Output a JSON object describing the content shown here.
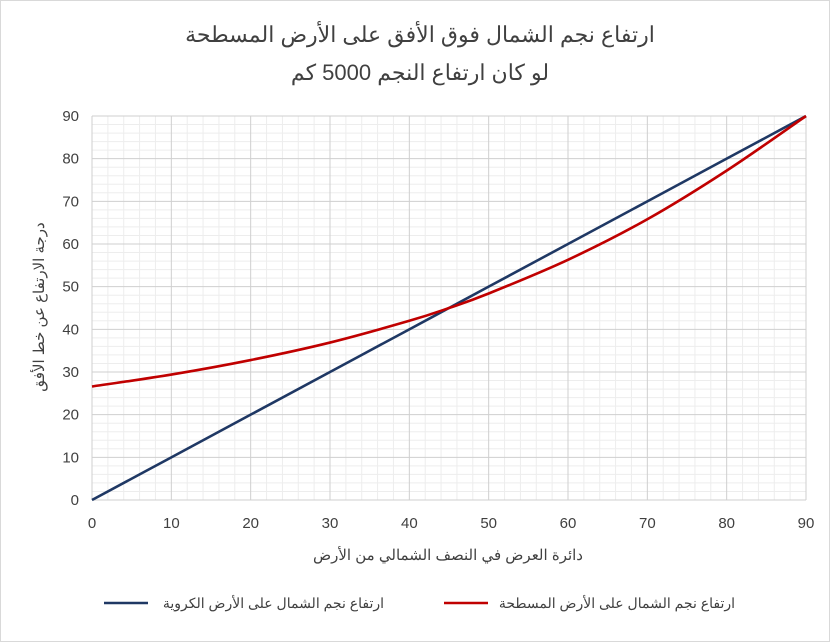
{
  "chart_data": {
    "type": "line",
    "title_line1": "ارتفاع نجم الشمال فوق الأفق على الأرض المسطحة",
    "title_line2": "لو كان ارتفاع النجم 5000 كم",
    "xlabel": "دائرة العرض في النصف الشمالي من الأرض",
    "ylabel": "درجة الارتفاع عن خط الأفق",
    "xlim": [
      0,
      90
    ],
    "ylim": [
      0,
      90
    ],
    "x_ticks": [
      "0",
      "10",
      "20",
      "30",
      "40",
      "50",
      "60",
      "70",
      "80",
      "90"
    ],
    "y_ticks": [
      "0",
      "10",
      "20",
      "30",
      "40",
      "50",
      "60",
      "70",
      "80",
      "90"
    ],
    "grid": true,
    "legend_position": "bottom",
    "series": [
      {
        "name": "ارتفاع نجم الشمال على الأرض الكروية",
        "color": "#1f3864",
        "x": [
          0,
          10,
          20,
          30,
          40,
          45,
          50,
          60,
          70,
          80,
          90
        ],
        "y": [
          0,
          10,
          20,
          30,
          40,
          45,
          50,
          60,
          70,
          80,
          90
        ]
      },
      {
        "name": "ارتفاع نجم الشمال على الأرض المسطحة",
        "color": "#c00000",
        "x": [
          0,
          10,
          20,
          30,
          40,
          45,
          50,
          60,
          70,
          80,
          90
        ],
        "y": [
          26.6,
          29.4,
          32.8,
          36.9,
          42.0,
          45.0,
          48.4,
          56.3,
          65.8,
          77.2,
          90.0
        ]
      }
    ]
  }
}
